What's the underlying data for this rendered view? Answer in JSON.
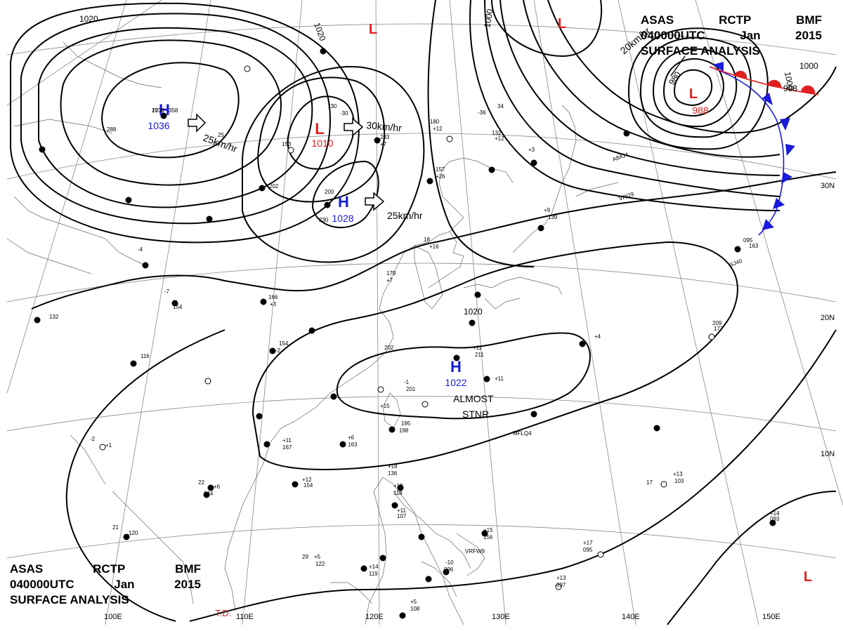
{
  "header": {
    "line1": [
      "ASAS",
      "RCTP",
      "BMF"
    ],
    "line2": [
      "040000UTC",
      "Jan",
      "2015"
    ],
    "line3": "SURFACE ANALYSIS"
  },
  "isobar_labels": [
    "1020",
    "1020",
    "1000",
    "1000",
    "980",
    "988",
    "1000",
    "1020"
  ],
  "pressure_centers": [
    {
      "type": "H",
      "value": "1036"
    },
    {
      "type": "H",
      "value": "1028"
    },
    {
      "type": "H",
      "value": "1022"
    },
    {
      "type": "L",
      "value": "1010"
    },
    {
      "type": "L",
      "value": "988"
    },
    {
      "type": "L",
      "value": ""
    },
    {
      "type": "L",
      "value": ""
    },
    {
      "type": "L",
      "value": ""
    }
  ],
  "motion_labels": [
    "25km/hr",
    "30km/hr",
    "25km/hr",
    "20km/hr"
  ],
  "status_text": [
    "ALMOST",
    "STNR"
  ],
  "latitude_labels": [
    "30N",
    "20N",
    "10N"
  ],
  "longitude_labels": [
    "100E",
    "110E",
    "120E",
    "130E",
    "140E",
    "150E"
  ],
  "td_label": "T.D.",
  "ship_ids": [
    "A8AJ4",
    "VRI29",
    "SJ40",
    "MFLQ4",
    "VRFW9"
  ],
  "station_values": [
    "1036",
    "358",
    "288",
    "25",
    "202",
    "153",
    "130",
    "-30",
    "233",
    "+7",
    "180",
    "+12",
    "-36",
    "34",
    "132",
    "+12",
    "157",
    "+26",
    "200",
    "230",
    "18",
    "+16",
    "179",
    "+7",
    "166",
    "+3",
    "154",
    "-2",
    "202",
    "-1",
    "201",
    "+11",
    "211",
    "+11",
    "+15",
    "195",
    "198",
    "+6",
    "163",
    "+11",
    "167",
    "+6",
    "144",
    "+12",
    "154",
    "+18",
    "136",
    "+13",
    "118",
    "+11",
    "107",
    "+5",
    "122",
    "+14",
    "119",
    "+5",
    "108",
    "+15",
    "156",
    "-10",
    "096",
    "+13",
    "097",
    "+17",
    "095",
    "+14",
    "093",
    "+13",
    "103",
    "+4",
    "209",
    "177",
    "+9",
    "139",
    "+3",
    "095",
    "163",
    "+1",
    "120",
    "116",
    "132",
    "154",
    "-4",
    "-7",
    "-2",
    "21",
    "22",
    "17",
    "29",
    "27"
  ],
  "colors": {
    "high": "#1a1adc",
    "low": "#e02020",
    "front": "#1a1adc",
    "warm": "#e02020",
    "line": "#000000"
  }
}
